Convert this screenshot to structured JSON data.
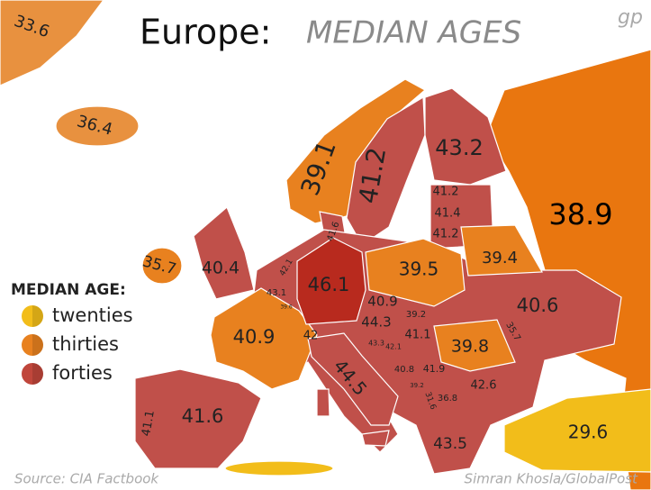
{
  "title": {
    "main": "Europe:",
    "sub": "MEDIAN AGES"
  },
  "logo": "gp",
  "legend": {
    "title": "MEDIAN AGE:",
    "items": [
      {
        "label": "twenties",
        "color": "#f2bd1a"
      },
      {
        "label": "thirties",
        "color": "#e8811f"
      },
      {
        "label": "forties",
        "color": "#c0463b"
      }
    ]
  },
  "labels": [
    33.6,
    36.4,
    39.1,
    41.2,
    43.2,
    41.2,
    41.4,
    41.2,
    38.9,
    41.6,
    35.7,
    40.4,
    42.1,
    43.1,
    39.6,
    46.1,
    39.5,
    39.4,
    40.6,
    40.9,
    39.2,
    44.3,
    41.1,
    35.7,
    39.8,
    40.9,
    42,
    43.3,
    42.1,
    40.8,
    41.9,
    39.2,
    31.6,
    36.8,
    42.6,
    44.5,
    41.1,
    41.6,
    43.5,
    29.6
  ],
  "footer": {
    "source": "Source: CIA Factbook",
    "credit": "Simran Khosla/GlobalPost"
  }
}
